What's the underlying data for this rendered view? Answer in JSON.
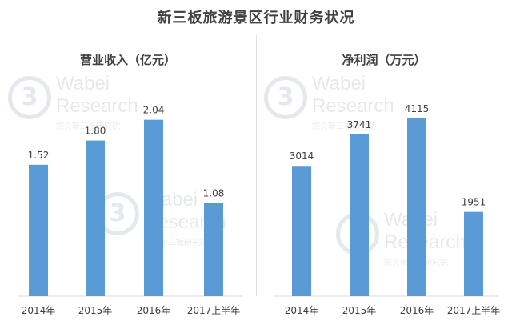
{
  "title": "新三板旅游景区行业财务状况",
  "colors": {
    "bar": "#5b9bd5",
    "title": "#404040",
    "text": "#404040",
    "baseline": "#d9d9d9",
    "divider": "#e0e0e0"
  },
  "watermark": {
    "logo": "3",
    "brand": "Wabei",
    "research": "Research",
    "sub": "挖贝新三板研究院"
  },
  "chart_data": [
    {
      "type": "bar",
      "title": "营业收入（亿元）",
      "categories": [
        "2014年",
        "2015年",
        "2016年",
        "2017上半年"
      ],
      "values": [
        1.52,
        1.8,
        2.04,
        1.08
      ],
      "value_labels": [
        "1.52",
        "1.80",
        "2.04",
        "1.08"
      ],
      "ylim": [
        0,
        2.5
      ],
      "grid": false,
      "legend": "none"
    },
    {
      "type": "bar",
      "title": "净利润（万元）",
      "categories": [
        "2014年",
        "2015年",
        "2016年",
        "2017上半年"
      ],
      "values": [
        3014,
        3741,
        4115,
        1951
      ],
      "value_labels": [
        "3014",
        "3741",
        "4115",
        "1951"
      ],
      "ylim": [
        0,
        5000
      ],
      "grid": false,
      "legend": "none"
    }
  ]
}
